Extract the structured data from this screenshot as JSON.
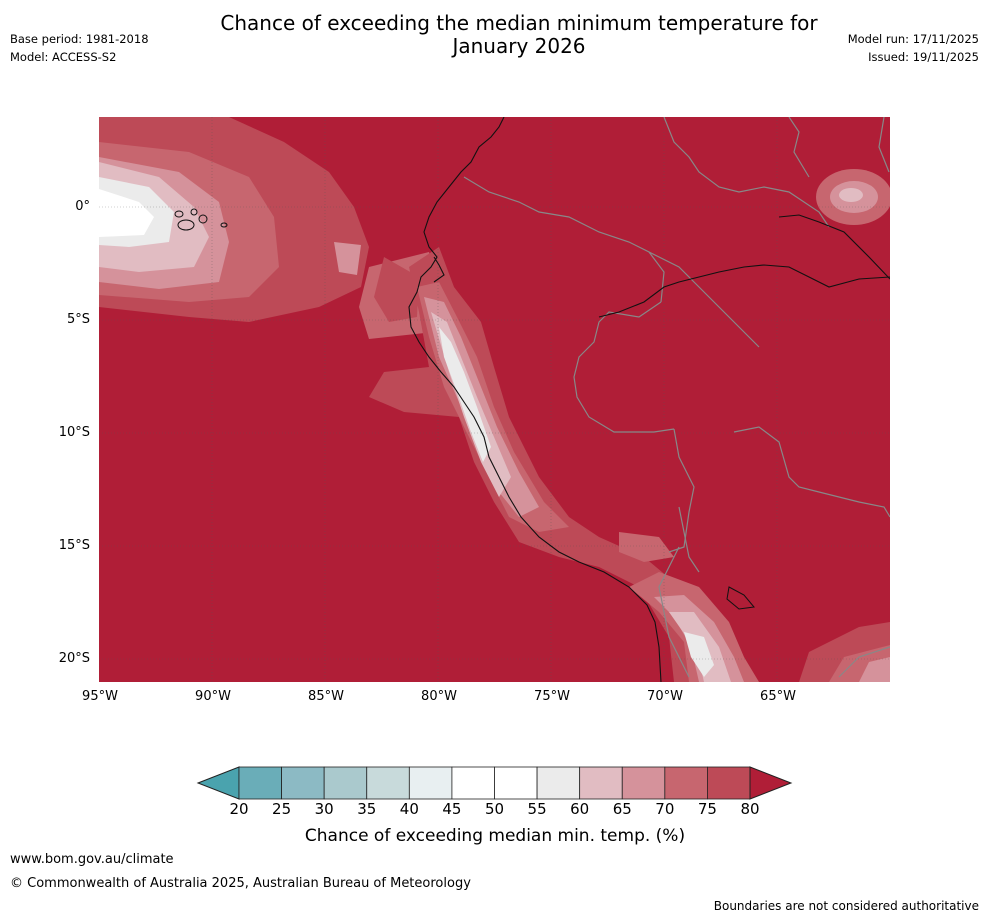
{
  "title": "Chance of exceeding the median minimum temperature for\nJanuary 2026",
  "header_left": {
    "base_period": "Base period: 1981-2018",
    "model": "Model: ACCESS-S2"
  },
  "header_right": {
    "model_run": "Model run: 17/11/2025",
    "issued": "Issued: 19/11/2025"
  },
  "map": {
    "lon_range": [
      -95,
      -60
    ],
    "lat_range": [
      -21,
      4
    ],
    "lat_ticks": [
      {
        "value": 0,
        "label": "0°"
      },
      {
        "value": -5,
        "label": "5°S"
      },
      {
        "value": -10,
        "label": "10°S"
      },
      {
        "value": -15,
        "label": "15°S"
      },
      {
        "value": -20,
        "label": "20°S"
      }
    ],
    "lon_ticks": [
      {
        "value": -95,
        "label": "95°W"
      },
      {
        "value": -90,
        "label": "90°W"
      },
      {
        "value": -85,
        "label": "85°W"
      },
      {
        "value": -80,
        "label": "80°W"
      },
      {
        "value": -75,
        "label": "75°W"
      },
      {
        "value": -70,
        "label": "70°W"
      },
      {
        "value": -65,
        "label": "65°W"
      }
    ],
    "dominant_category": ">80%"
  },
  "colorbar": {
    "label": "Chance of exceeding median min. temp. (%)",
    "ticks": [
      "20",
      "25",
      "30",
      "35",
      "40",
      "45",
      "50",
      "55",
      "60",
      "65",
      "70",
      "75",
      "80"
    ],
    "colors": {
      "under": "#4aa3ae",
      "bins": [
        "#6aadb8",
        "#8cbac4",
        "#aac9cd",
        "#c8dadb",
        "#e8eff1",
        "#ffffff",
        "#ffffff",
        "#ebebeb",
        "#e1bcc2",
        "#d5929b",
        "#c7666f",
        "#bd4a57"
      ],
      "over": "#b01e37"
    }
  },
  "footer": {
    "website": "www.bom.gov.au/climate",
    "copyright": "© Commonwealth of Australia 2025, Australian Bureau of Meteorology",
    "disclaimer": "Boundaries are not considered authoritative"
  }
}
